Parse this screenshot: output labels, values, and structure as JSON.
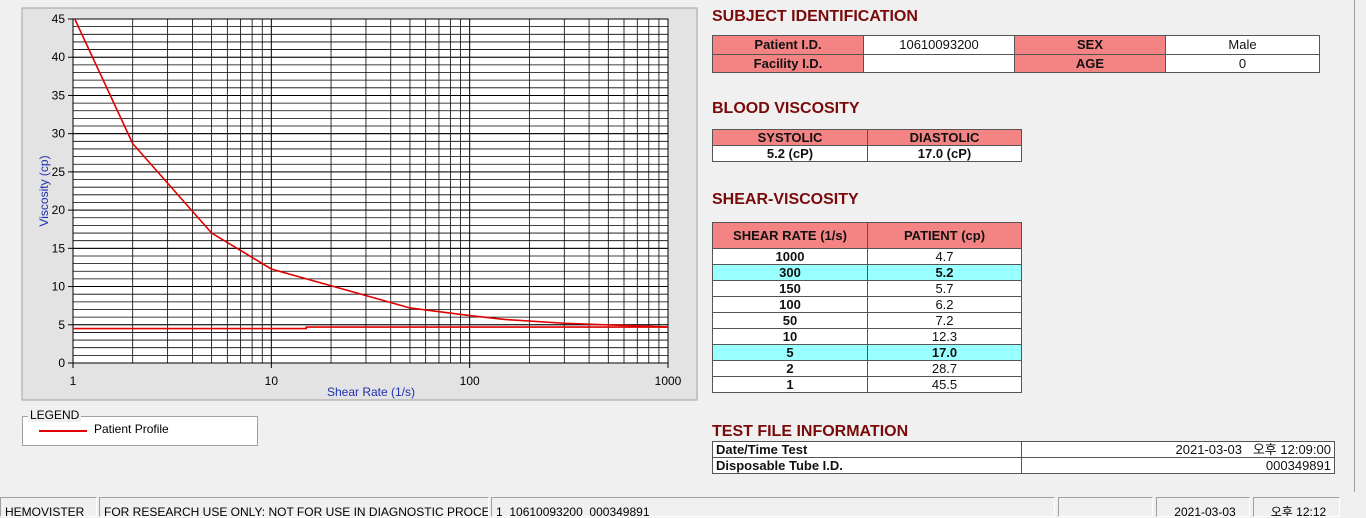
{
  "chart_data": {
    "type": "line",
    "x_label": "Shear Rate (1/s)",
    "y_label": "Viscosity (cp)",
    "log_x": true,
    "xlim": [
      1,
      1000
    ],
    "xticks": [
      1,
      10,
      100,
      1000
    ],
    "ylim": [
      0,
      45
    ],
    "yticks": [
      0,
      5,
      10,
      15,
      20,
      25,
      30,
      35,
      40,
      45
    ],
    "grid": true,
    "legend_title": "LEGEND",
    "series": [
      {
        "name": "Patient Profile",
        "color": "#e00000",
        "x": [
          1,
          2,
          5,
          10,
          50,
          100,
          150,
          300,
          1000
        ],
        "values": [
          45.5,
          28.7,
          17.0,
          12.3,
          7.2,
          6.2,
          5.7,
          5.2,
          4.7
        ]
      },
      {
        "color": "#e00000",
        "x": [
          1,
          15,
          15,
          1000
        ],
        "values": [
          4.5,
          4.5,
          4.7,
          4.7
        ]
      }
    ]
  },
  "subject_identification": {
    "title": "SUBJECT IDENTIFICATION",
    "patient_id_label": "Patient I.D.",
    "patient_id": "10610093200",
    "sex_label": "SEX",
    "sex": "Male",
    "facility_id_label": "Facility I.D.",
    "age_label": "AGE",
    "age": "0"
  },
  "blood_viscosity": {
    "title": "BLOOD VISCOSITY",
    "systolic_label": "SYSTOLIC",
    "diastolic_label": "DIASTOLIC",
    "systolic": "5.2 (cP)",
    "diastolic": "17.0 (cP)"
  },
  "shear_viscosity": {
    "title": "SHEAR-VISCOSITY",
    "headers": [
      "SHEAR RATE (1/s)",
      "PATIENT (cp)"
    ],
    "highlight_color": "#99ffff",
    "rows": [
      {
        "shear_rate": "1000",
        "patient": "4.7"
      },
      {
        "shear_rate": "300",
        "patient": "5.2",
        "highlighted": true
      },
      {
        "shear_rate": "150",
        "patient": "5.7"
      },
      {
        "shear_rate": "100",
        "patient": "6.2"
      },
      {
        "shear_rate": "50",
        "patient": "7.2"
      },
      {
        "shear_rate": "10",
        "patient": "12.3"
      },
      {
        "shear_rate": "5",
        "patient": "17.0",
        "highlighted": true
      },
      {
        "shear_rate": "2",
        "patient": "28.7"
      },
      {
        "shear_rate": "1",
        "patient": "45.5"
      }
    ]
  },
  "test_file_information": {
    "title": "TEST FILE INFORMATION",
    "date_time_label": "Date/Time Test",
    "date_time": "2021-03-03   오후 12:09:00",
    "tube_id_label": "Disposable Tube I.D.",
    "tube_id": "000349891"
  },
  "status_bar": {
    "app": "HEMOVISTER",
    "notice": "FOR RESEARCH USE ONLY: NOT FOR USE IN DIAGNOSTIC PROCEDURES",
    "record": "1  10610093200  000349891",
    "date": "2021-03-03",
    "time": "오후 12:12"
  }
}
